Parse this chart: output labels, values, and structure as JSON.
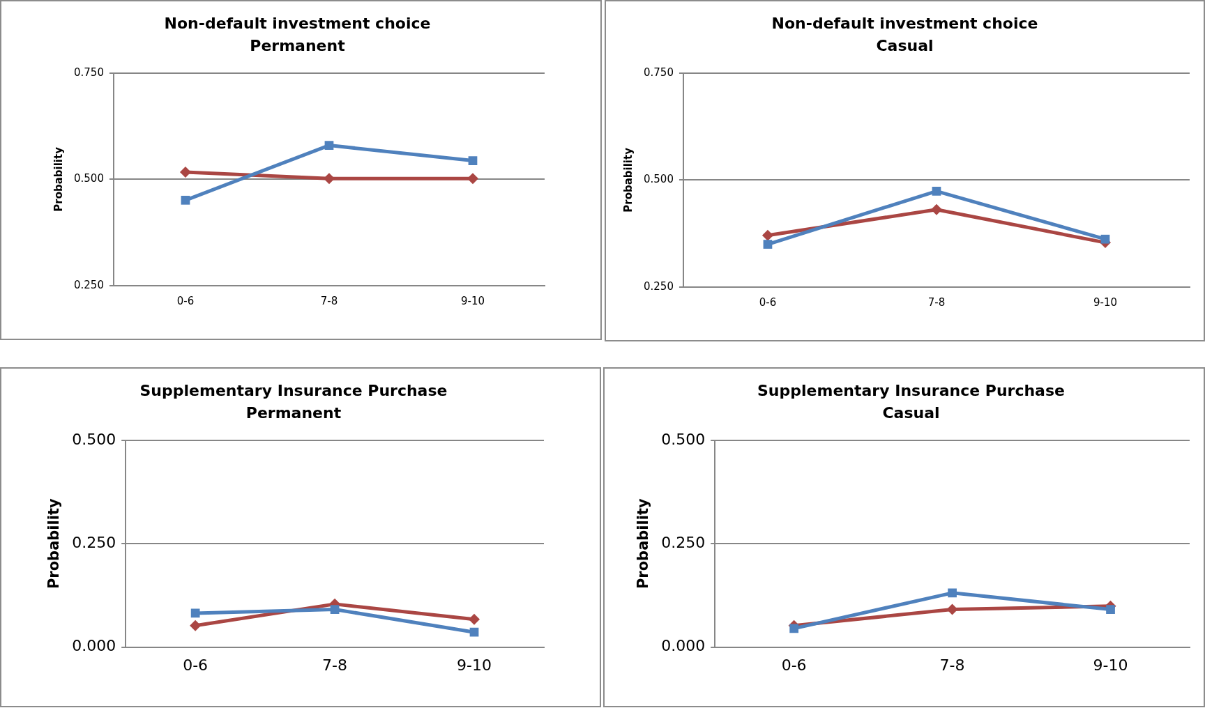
{
  "chart_data": [
    {
      "type": "line",
      "title": "Non-default investment choice",
      "subtitle": "Permanent",
      "ylabel": "Probability",
      "categories": [
        "0-6",
        "7-8",
        "9-10"
      ],
      "series": [
        {
          "color": "#aa4643",
          "marker": "diamond",
          "values": [
            0.517,
            0.502,
            0.502
          ]
        },
        {
          "color": "#4f81bd",
          "marker": "square",
          "values": [
            0.451,
            0.58,
            0.544
          ]
        }
      ],
      "ylim": [
        0.25,
        0.75
      ],
      "yticks": [
        {
          "value": 0.25,
          "label": "0.250"
        },
        {
          "value": 0.5,
          "label": "0.500"
        },
        {
          "value": 0.75,
          "label": "0.750"
        }
      ],
      "grid": "y",
      "line_style": "solid"
    },
    {
      "type": "line",
      "title": "Non-default investment choice",
      "subtitle": "Casual",
      "ylabel": "Probability",
      "categories": [
        "0-6",
        "7-8",
        "9-10"
      ],
      "series": [
        {
          "color": "#aa4643",
          "marker": "diamond",
          "values": [
            0.371,
            0.431,
            0.354
          ]
        },
        {
          "color": "#4f81bd",
          "marker": "square",
          "values": [
            0.35,
            0.474,
            0.362
          ]
        }
      ],
      "ylim": [
        0.25,
        0.75
      ],
      "yticks": [
        {
          "value": 0.25,
          "label": "0.250"
        },
        {
          "value": 0.5,
          "label": "0.500"
        },
        {
          "value": 0.75,
          "label": "0.750"
        }
      ],
      "grid": "y",
      "line_style": "solid"
    },
    {
      "type": "line",
      "title": "Supplementary Insurance Purchase",
      "subtitle": "Permanent",
      "ylabel": "Probability",
      "categories": [
        "0-6",
        "7-8",
        "9-10"
      ],
      "series": [
        {
          "color": "#aa4643",
          "marker": "diamond",
          "values": [
            0.052,
            0.104,
            0.067
          ]
        },
        {
          "color": "#4f81bd",
          "marker": "square",
          "values": [
            0.082,
            0.091,
            0.036
          ]
        }
      ],
      "ylim": [
        0,
        0.5
      ],
      "yticks": [
        {
          "value": 0,
          "label": "0.000"
        },
        {
          "value": 0.25,
          "label": "0.250"
        },
        {
          "value": 0.5,
          "label": "0.500"
        }
      ],
      "grid": "y",
      "line_style": "solid"
    },
    {
      "type": "line",
      "title": "Supplementary Insurance Purchase",
      "subtitle": "Casual",
      "ylabel": "Probability",
      "categories": [
        "0-6",
        "7-8",
        "9-10"
      ],
      "series": [
        {
          "color": "#aa4643",
          "marker": "diamond",
          "values": [
            0.052,
            0.091,
            0.099
          ]
        },
        {
          "color": "#4f81bd",
          "marker": "square",
          "values": [
            0.045,
            0.131,
            0.091
          ]
        }
      ],
      "ylim": [
        0,
        0.5
      ],
      "yticks": [
        {
          "value": 0,
          "label": "0.000"
        },
        {
          "value": 0.25,
          "label": "0.250"
        },
        {
          "value": 0.5,
          "label": "0.500"
        }
      ],
      "grid": "y",
      "line_style": "solid"
    }
  ]
}
